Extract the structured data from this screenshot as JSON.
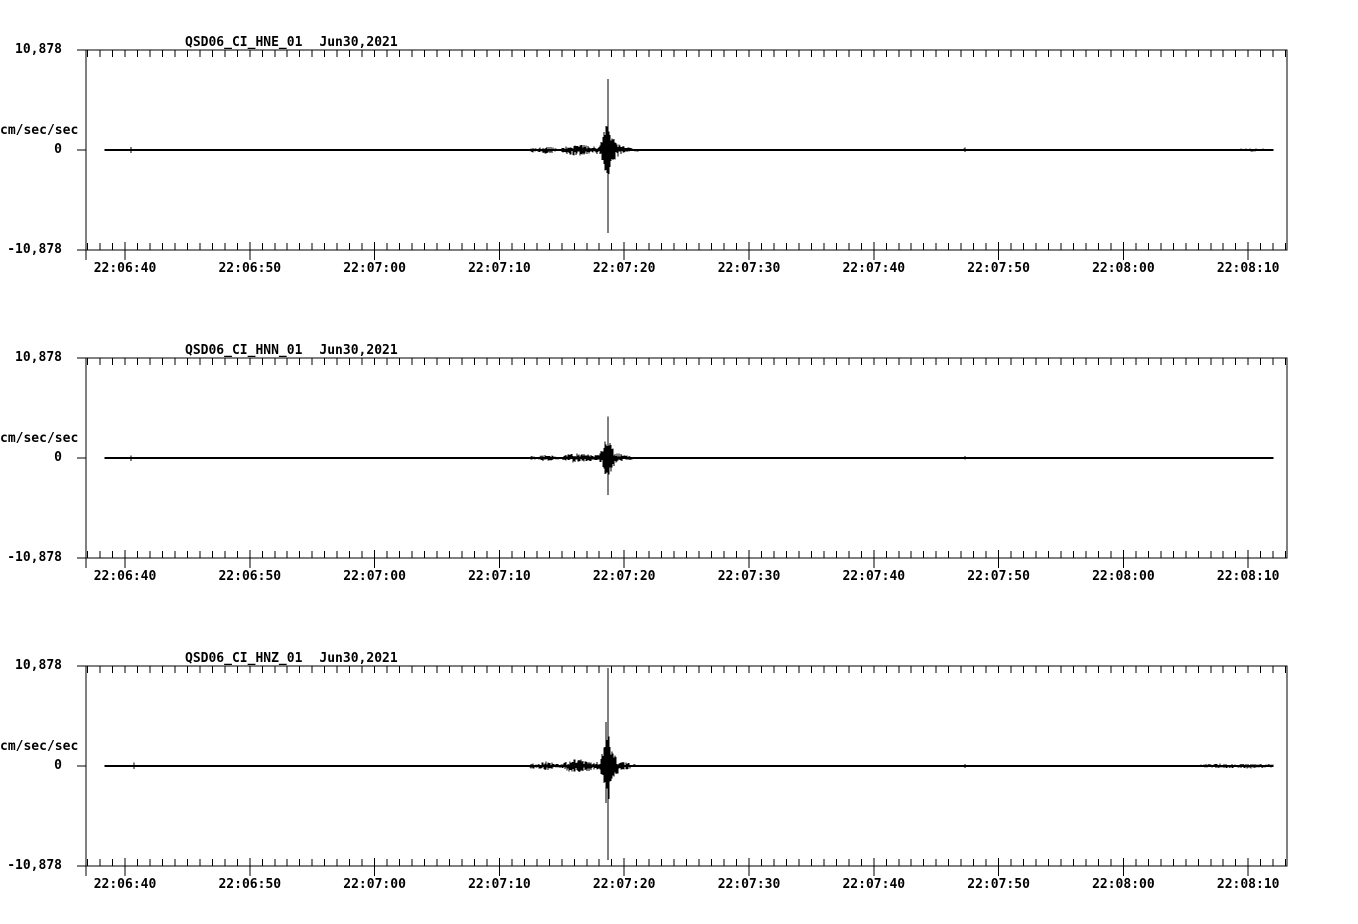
{
  "page": {
    "background": "#ffffff",
    "line_color": "#000000"
  },
  "chart_data": [
    {
      "type": "line",
      "title": "QSD06_CI_HNE_01",
      "date_label": "Jun30,2021",
      "ylabel": "cm/sec/sec",
      "y_ticks": [
        "10,878",
        "0",
        "-10,878"
      ],
      "ylim": [
        -10.878,
        10.878
      ],
      "x_ticks": [
        "22:06:40",
        "22:06:50",
        "22:07:00",
        "22:07:10",
        "22:07:20",
        "22:07:30",
        "22:07:40",
        "22:07:50",
        "22:08:00",
        "22:08:10"
      ],
      "time_window": {
        "start": "22:06:37",
        "end": "22:08:13"
      },
      "minor_tick_seconds": 1,
      "major_tick_seconds": 10,
      "grid": false,
      "trace": {
        "t_units": "seconds after 22:06:00",
        "start_t": 38.4,
        "end_t": 132.0,
        "noise_scale": 1.0,
        "peak": {
          "t": 78.68,
          "time_label": "22:07:18.7",
          "up": 7.75,
          "down": 9.05
        },
        "envelope": [
          [
            38.4,
            0.05
          ],
          [
            72.3,
            0.05
          ],
          [
            72.6,
            0.3
          ],
          [
            73.0,
            0.15
          ],
          [
            73.6,
            0.45
          ],
          [
            74.3,
            0.3
          ],
          [
            74.9,
            0.18
          ],
          [
            75.5,
            0.5
          ],
          [
            76.3,
            0.7
          ],
          [
            77.0,
            0.5
          ],
          [
            77.5,
            0.38
          ],
          [
            78.0,
            0.5
          ],
          [
            78.3,
            1.5
          ],
          [
            78.5,
            2.8
          ],
          [
            78.8,
            2.3
          ],
          [
            79.1,
            1.3
          ],
          [
            79.5,
            0.75
          ],
          [
            80.0,
            0.4
          ],
          [
            80.7,
            0.2
          ],
          [
            81.5,
            0.1
          ],
          [
            82.3,
            0.05
          ],
          [
            106.9,
            0.05
          ],
          [
            107.3,
            0.18
          ],
          [
            107.7,
            0.05
          ],
          [
            128.5,
            0.05
          ],
          [
            129.2,
            0.16
          ],
          [
            130.3,
            0.18
          ],
          [
            131.3,
            0.14
          ],
          [
            132.0,
            0.1
          ]
        ],
        "impulses": [
          [
            40.5,
            0.3,
            0.35
          ],
          [
            42.4,
            0.12,
            0.1
          ],
          [
            78.54,
            2.6,
            2.2
          ],
          [
            78.68,
            7.75,
            9.05
          ],
          [
            78.82,
            2.0,
            2.6
          ],
          [
            107.3,
            0.25,
            0.2
          ]
        ]
      }
    },
    {
      "type": "line",
      "title": "QSD06_CI_HNN_01",
      "date_label": "Jun30,2021",
      "ylabel": "cm/sec/sec",
      "y_ticks": [
        "10,878",
        "0",
        "-10,878"
      ],
      "ylim": [
        -10.878,
        10.878
      ],
      "x_ticks": [
        "22:06:40",
        "22:06:50",
        "22:07:00",
        "22:07:10",
        "22:07:20",
        "22:07:30",
        "22:07:40",
        "22:07:50",
        "22:08:00",
        "22:08:10"
      ],
      "time_window": {
        "start": "22:06:37",
        "end": "22:08:13"
      },
      "minor_tick_seconds": 1,
      "major_tick_seconds": 10,
      "grid": false,
      "trace": {
        "t_units": "seconds after 22:06:00",
        "start_t": 38.4,
        "end_t": 132.0,
        "noise_scale": 0.8,
        "peak": {
          "t": 78.68,
          "time_label": "22:07:18.7",
          "up": 4.5,
          "down": 4.0
        },
        "envelope": [
          [
            38.4,
            0.05
          ],
          [
            72.3,
            0.05
          ],
          [
            72.6,
            0.3
          ],
          [
            73.0,
            0.15
          ],
          [
            73.6,
            0.45
          ],
          [
            74.3,
            0.3
          ],
          [
            74.9,
            0.18
          ],
          [
            75.5,
            0.5
          ],
          [
            76.3,
            0.7
          ],
          [
            77.0,
            0.5
          ],
          [
            77.5,
            0.38
          ],
          [
            78.0,
            0.5
          ],
          [
            78.3,
            1.5
          ],
          [
            78.5,
            2.8
          ],
          [
            78.8,
            2.3
          ],
          [
            79.1,
            1.3
          ],
          [
            79.5,
            0.75
          ],
          [
            80.0,
            0.4
          ],
          [
            80.7,
            0.2
          ],
          [
            81.5,
            0.1
          ],
          [
            82.3,
            0.05
          ],
          [
            106.9,
            0.05
          ],
          [
            107.3,
            0.18
          ],
          [
            107.7,
            0.05
          ],
          [
            132.0,
            0.05
          ]
        ],
        "impulses": [
          [
            40.5,
            0.28,
            0.3
          ],
          [
            42.4,
            0.1,
            0.1
          ],
          [
            78.68,
            4.5,
            4.0
          ],
          [
            107.3,
            0.2,
            0.18
          ],
          [
            127.9,
            0.1,
            0.1
          ],
          [
            129.3,
            0.08,
            0.08
          ]
        ]
      }
    },
    {
      "type": "line",
      "title": "QSD06_CI_HNZ_01",
      "date_label": "Jun30,2021",
      "ylabel": "cm/sec/sec",
      "y_ticks": [
        "10,878",
        "0",
        "-10,878"
      ],
      "ylim": [
        -10.878,
        10.878
      ],
      "x_ticks": [
        "22:06:40",
        "22:06:50",
        "22:07:00",
        "22:07:10",
        "22:07:20",
        "22:07:30",
        "22:07:40",
        "22:07:50",
        "22:08:00",
        "22:08:10"
      ],
      "time_window": {
        "start": "22:06:37",
        "end": "22:08:13"
      },
      "minor_tick_seconds": 1,
      "major_tick_seconds": 10,
      "grid": false,
      "trace": {
        "t_units": "seconds after 22:06:00",
        "start_t": 38.4,
        "end_t": 132.0,
        "noise_scale": 1.15,
        "peak": {
          "t": 78.68,
          "time_label": "22:07:18.7",
          "up": 10.66,
          "down": 10.23
        },
        "envelope": [
          [
            38.4,
            0.05
          ],
          [
            72.3,
            0.05
          ],
          [
            72.6,
            0.3
          ],
          [
            73.0,
            0.15
          ],
          [
            73.6,
            0.45
          ],
          [
            74.3,
            0.3
          ],
          [
            74.9,
            0.18
          ],
          [
            75.5,
            0.5
          ],
          [
            76.3,
            0.7
          ],
          [
            77.0,
            0.5
          ],
          [
            77.5,
            0.38
          ],
          [
            78.0,
            0.5
          ],
          [
            78.3,
            1.5
          ],
          [
            78.5,
            2.8
          ],
          [
            78.8,
            2.3
          ],
          [
            79.1,
            1.3
          ],
          [
            79.5,
            0.75
          ],
          [
            80.0,
            0.4
          ],
          [
            80.7,
            0.2
          ],
          [
            81.5,
            0.1
          ],
          [
            82.3,
            0.05
          ],
          [
            106.9,
            0.05
          ],
          [
            107.3,
            0.18
          ],
          [
            107.7,
            0.05
          ],
          [
            125.8,
            0.05
          ],
          [
            126.5,
            0.18
          ],
          [
            127.6,
            0.22
          ],
          [
            129.0,
            0.2
          ],
          [
            130.5,
            0.24
          ],
          [
            132.0,
            0.16
          ]
        ],
        "impulses": [
          [
            40.7,
            0.4,
            0.35
          ],
          [
            42.4,
            0.12,
            0.12
          ],
          [
            44.4,
            0.1,
            0.08
          ],
          [
            78.54,
            4.8,
            4.0
          ],
          [
            78.68,
            10.66,
            10.23
          ],
          [
            78.82,
            3.2,
            3.6
          ],
          [
            107.3,
            0.22,
            0.2
          ]
        ]
      }
    }
  ]
}
